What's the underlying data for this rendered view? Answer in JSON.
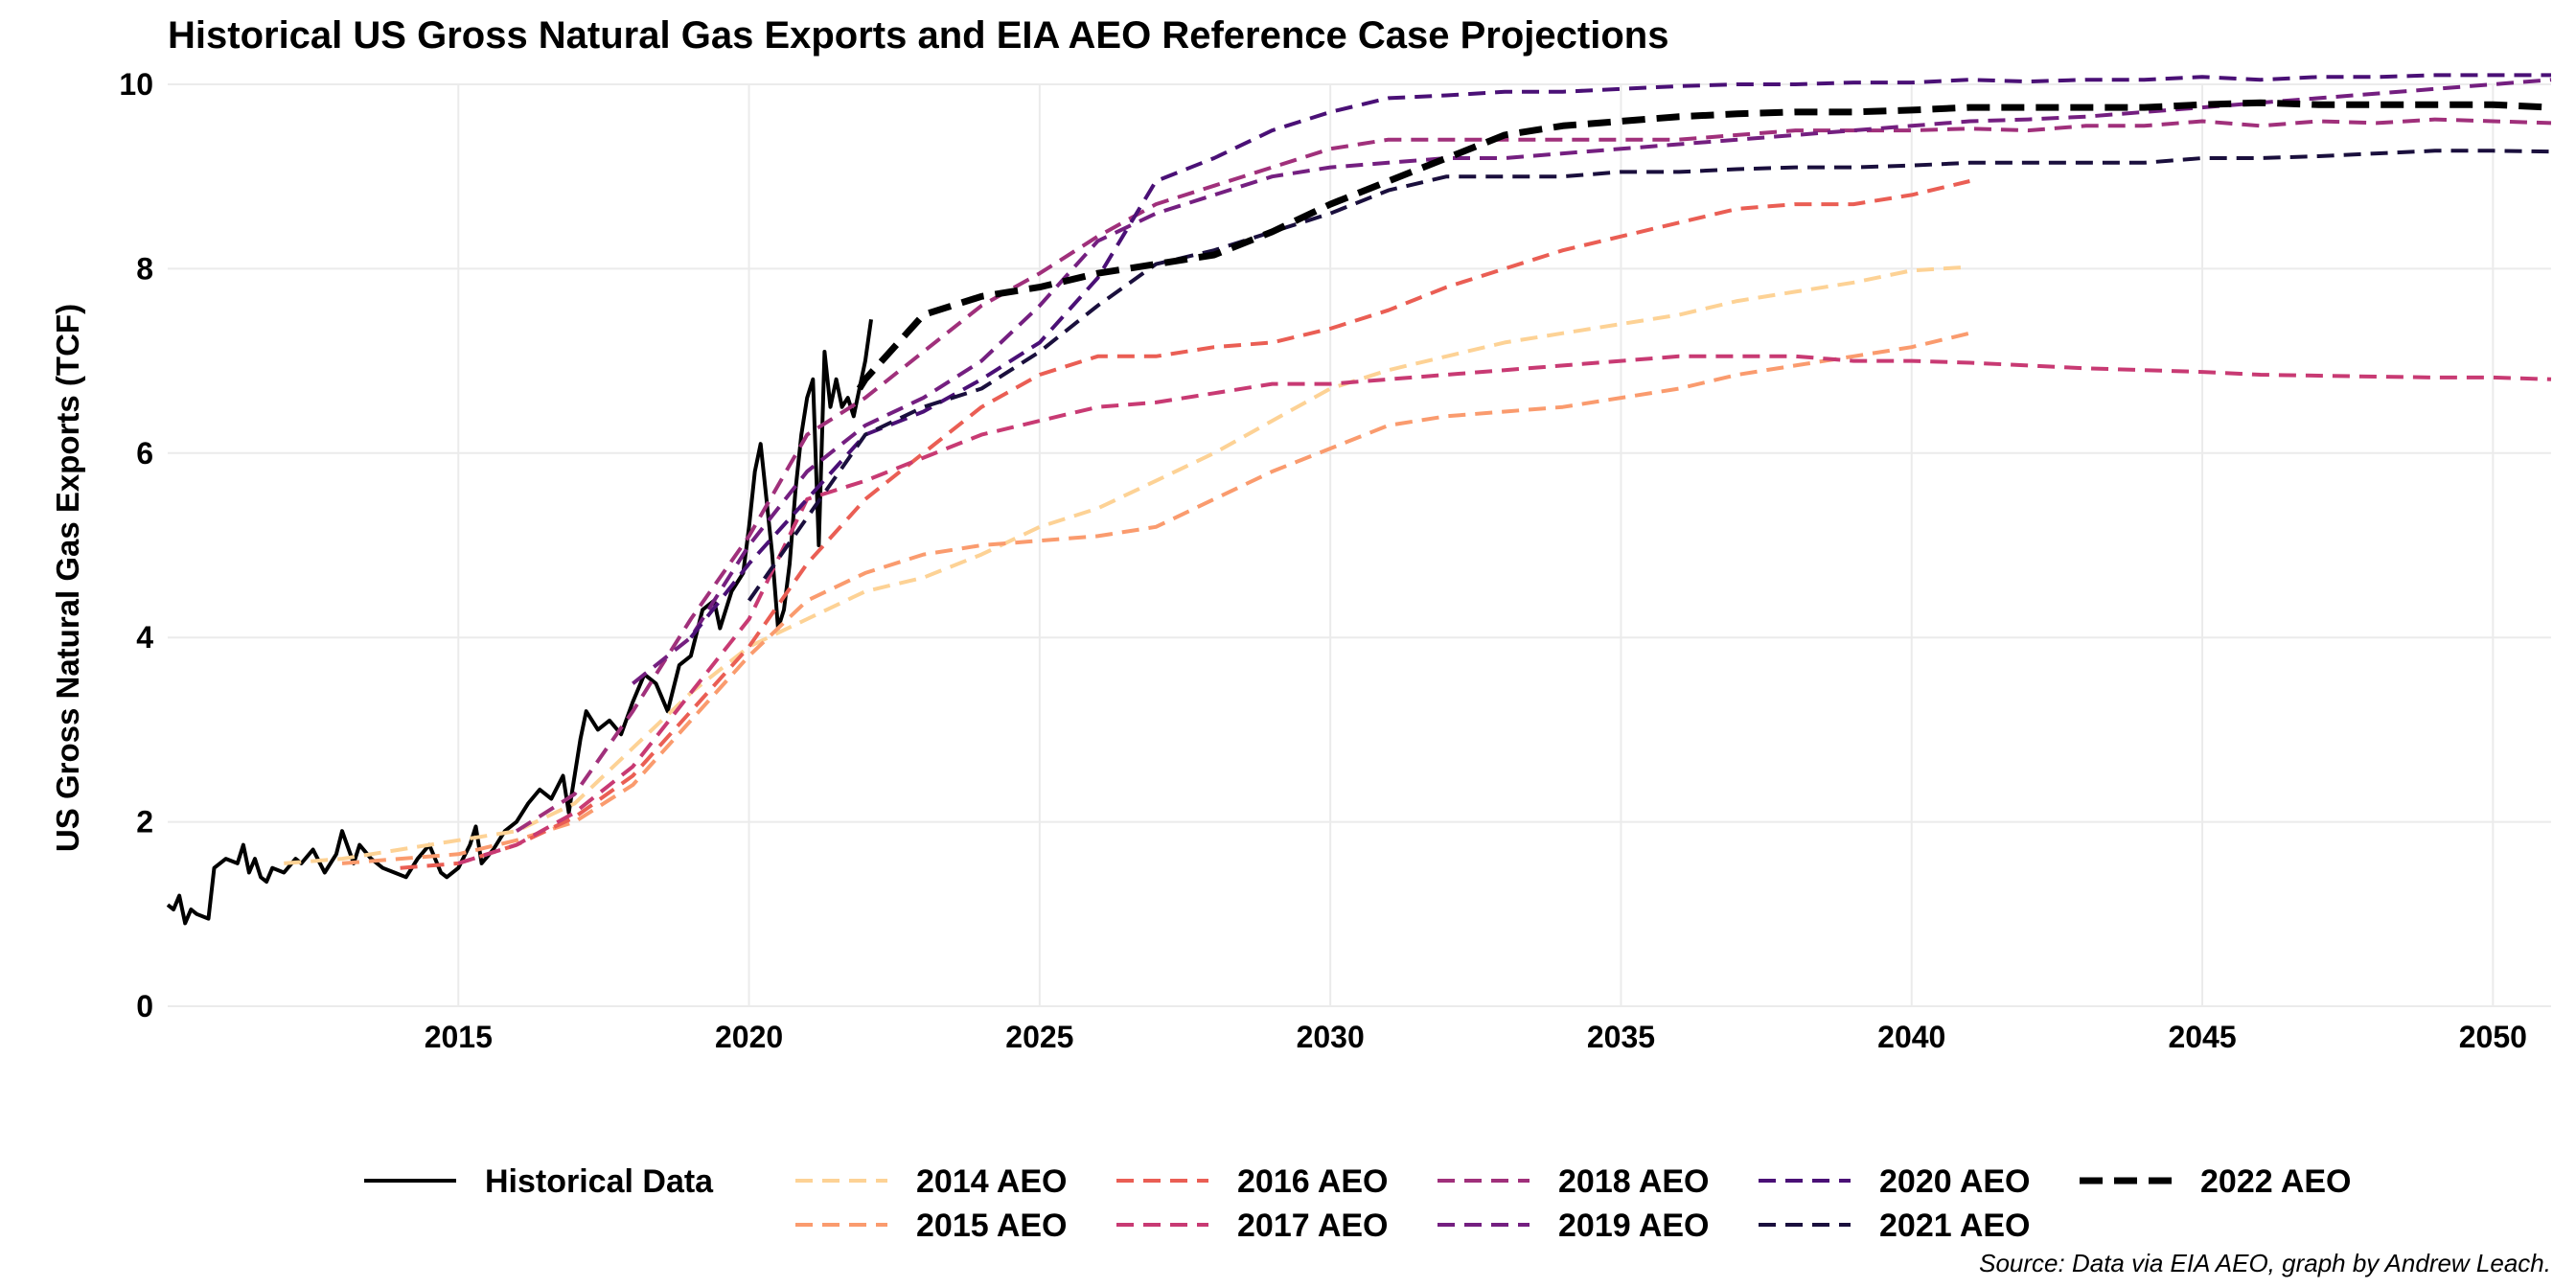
{
  "chart_data": {
    "type": "line",
    "title": "Historical US Gross Natural Gas Exports and EIA AEO Reference Case Projections",
    "ylabel": "US Gross Natural Gas Exports (TCF)",
    "xlabel": "",
    "caption": "Source: Data via EIA AEO, graph by Andrew Leach.",
    "xlim": [
      2010,
      2051
    ],
    "ylim": [
      0,
      10
    ],
    "x_ticks": [
      2015,
      2020,
      2025,
      2030,
      2035,
      2040,
      2045,
      2050
    ],
    "y_ticks": [
      0,
      2,
      4,
      6,
      8,
      10
    ],
    "grid": true,
    "legend_position": "bottom",
    "series": [
      {
        "name": "Historical Data",
        "color": "#000000",
        "dash": "solid",
        "width": 4,
        "x": [
          2010.0,
          2010.1,
          2010.2,
          2010.3,
          2010.4,
          2010.5,
          2010.7,
          2010.8,
          2011.0,
          2011.2,
          2011.3,
          2011.4,
          2011.5,
          2011.6,
          2011.7,
          2011.8,
          2012.0,
          2012.2,
          2012.3,
          2012.5,
          2012.7,
          2012.9,
          2013.0,
          2013.2,
          2013.3,
          2013.5,
          2013.7,
          2013.9,
          2014.1,
          2014.3,
          2014.5,
          2014.7,
          2014.8,
          2015.0,
          2015.2,
          2015.3,
          2015.4,
          2015.6,
          2015.8,
          2016.0,
          2016.2,
          2016.4,
          2016.6,
          2016.8,
          2016.9,
          2017.1,
          2017.2,
          2017.4,
          2017.6,
          2017.8,
          2018.0,
          2018.2,
          2018.4,
          2018.6,
          2018.8,
          2019.0,
          2019.2,
          2019.4,
          2019.5,
          2019.7,
          2019.9,
          2020.0,
          2020.1,
          2020.2,
          2020.3,
          2020.4,
          2020.5,
          2020.6,
          2020.7,
          2020.8,
          2020.9,
          2021.0,
          2021.1,
          2021.2,
          2021.3,
          2021.4,
          2021.5,
          2021.6,
          2021.7,
          2021.8,
          2021.9,
          2022.0,
          2022.1
        ],
        "y": [
          1.1,
          1.05,
          1.2,
          0.9,
          1.05,
          1.0,
          0.95,
          1.5,
          1.6,
          1.55,
          1.75,
          1.45,
          1.6,
          1.4,
          1.35,
          1.5,
          1.45,
          1.6,
          1.55,
          1.7,
          1.45,
          1.65,
          1.9,
          1.55,
          1.75,
          1.6,
          1.5,
          1.45,
          1.4,
          1.6,
          1.75,
          1.45,
          1.4,
          1.5,
          1.75,
          1.95,
          1.55,
          1.7,
          1.9,
          2.0,
          2.2,
          2.35,
          2.25,
          2.5,
          2.1,
          2.9,
          3.2,
          3.0,
          3.1,
          2.95,
          3.3,
          3.6,
          3.5,
          3.2,
          3.7,
          3.8,
          4.3,
          4.4,
          4.1,
          4.5,
          4.7,
          5.2,
          5.8,
          6.1,
          5.5,
          4.9,
          4.1,
          4.3,
          4.8,
          5.6,
          6.2,
          6.6,
          6.8,
          5.0,
          7.1,
          6.5,
          6.8,
          6.5,
          6.6,
          6.4,
          6.7,
          7.0,
          7.45
        ]
      },
      {
        "name": "2014 AEO",
        "color": "#fdd295",
        "dash": "dashed",
        "width": 4,
        "x": [
          2012,
          2013,
          2014,
          2015,
          2016,
          2017,
          2018,
          2019,
          2020,
          2021,
          2022,
          2023,
          2024,
          2025,
          2026,
          2027,
          2028,
          2029,
          2030,
          2031,
          2032,
          2033,
          2034,
          2035,
          2036,
          2037,
          2038,
          2039,
          2040,
          2041
        ],
        "y": [
          1.55,
          1.6,
          1.7,
          1.8,
          1.9,
          2.2,
          2.8,
          3.4,
          3.9,
          4.2,
          4.5,
          4.65,
          4.9,
          5.2,
          5.4,
          5.7,
          6.0,
          6.35,
          6.7,
          6.9,
          7.05,
          7.2,
          7.3,
          7.4,
          7.5,
          7.65,
          7.75,
          7.85,
          7.98,
          8.02
        ]
      },
      {
        "name": "2015 AEO",
        "color": "#fa9b6e",
        "dash": "dashed",
        "width": 4,
        "x": [
          2013,
          2014,
          2015,
          2016,
          2017,
          2018,
          2019,
          2020,
          2021,
          2022,
          2023,
          2024,
          2025,
          2026,
          2027,
          2028,
          2029,
          2030,
          2031,
          2032,
          2033,
          2034,
          2035,
          2036,
          2037,
          2038,
          2039,
          2040,
          2041
        ],
        "y": [
          1.55,
          1.6,
          1.65,
          1.8,
          2.0,
          2.4,
          3.1,
          3.8,
          4.4,
          4.7,
          4.9,
          5.0,
          5.05,
          5.1,
          5.2,
          5.5,
          5.8,
          6.05,
          6.3,
          6.4,
          6.45,
          6.5,
          6.6,
          6.7,
          6.85,
          6.95,
          7.05,
          7.15,
          7.3
        ]
      },
      {
        "name": "2016 AEO",
        "color": "#ea5e54",
        "dash": "dashed",
        "width": 4,
        "x": [
          2014,
          2015,
          2016,
          2017,
          2018,
          2019,
          2020,
          2021,
          2022,
          2023,
          2024,
          2025,
          2026,
          2027,
          2028,
          2029,
          2030,
          2031,
          2032,
          2033,
          2034,
          2035,
          2036,
          2037,
          2038,
          2039,
          2040,
          2041
        ],
        "y": [
          1.5,
          1.55,
          1.75,
          2.05,
          2.5,
          3.2,
          3.9,
          4.8,
          5.5,
          6.0,
          6.5,
          6.85,
          7.05,
          7.05,
          7.15,
          7.2,
          7.35,
          7.55,
          7.8,
          8.0,
          8.2,
          8.35,
          8.5,
          8.65,
          8.7,
          8.7,
          8.8,
          8.95
        ]
      },
      {
        "name": "2017 AEO",
        "color": "#c83a73",
        "dash": "dashed",
        "width": 4,
        "x": [
          2015,
          2016,
          2017,
          2018,
          2019,
          2020,
          2021,
          2022,
          2023,
          2024,
          2025,
          2026,
          2027,
          2028,
          2029,
          2030,
          2031,
          2032,
          2033,
          2034,
          2035,
          2036,
          2037,
          2038,
          2039,
          2040,
          2041,
          2042,
          2043,
          2044,
          2045,
          2046,
          2047,
          2048,
          2049,
          2050,
          2051
        ],
        "y": [
          1.55,
          1.75,
          2.1,
          2.6,
          3.4,
          4.2,
          5.5,
          5.7,
          5.95,
          6.2,
          6.35,
          6.5,
          6.55,
          6.65,
          6.75,
          6.75,
          6.8,
          6.85,
          6.9,
          6.95,
          7.0,
          7.05,
          7.05,
          7.05,
          7.0,
          7.0,
          6.98,
          6.95,
          6.92,
          6.9,
          6.88,
          6.85,
          6.84,
          6.83,
          6.82,
          6.82,
          6.8
        ]
      },
      {
        "name": "2018 AEO",
        "color": "#a0307b",
        "dash": "dashed",
        "width": 4,
        "x": [
          2016,
          2017,
          2018,
          2019,
          2020,
          2021,
          2022,
          2023,
          2024,
          2025,
          2026,
          2027,
          2028,
          2029,
          2030,
          2031,
          2032,
          2033,
          2034,
          2035,
          2036,
          2037,
          2038,
          2039,
          2040,
          2041,
          2042,
          2043,
          2044,
          2045,
          2046,
          2047,
          2048,
          2049,
          2050,
          2051
        ],
        "y": [
          1.9,
          2.3,
          3.2,
          4.2,
          5.1,
          6.2,
          6.6,
          7.1,
          7.6,
          7.95,
          8.35,
          8.7,
          8.9,
          9.1,
          9.3,
          9.4,
          9.4,
          9.4,
          9.4,
          9.4,
          9.4,
          9.45,
          9.5,
          9.5,
          9.5,
          9.52,
          9.5,
          9.55,
          9.55,
          9.6,
          9.55,
          9.6,
          9.58,
          9.62,
          9.6,
          9.58
        ]
      },
      {
        "name": "2019 AEO",
        "color": "#741f80",
        "dash": "dashed",
        "width": 4,
        "x": [
          2018,
          2019,
          2020,
          2021,
          2022,
          2023,
          2024,
          2025,
          2026,
          2027,
          2028,
          2029,
          2030,
          2031,
          2032,
          2033,
          2034,
          2035,
          2036,
          2037,
          2038,
          2039,
          2040,
          2041,
          2042,
          2043,
          2044,
          2045,
          2046,
          2047,
          2048,
          2049,
          2050,
          2051
        ],
        "y": [
          3.5,
          4.0,
          5.0,
          5.8,
          6.3,
          6.6,
          7.0,
          7.6,
          8.3,
          8.6,
          8.8,
          9.0,
          9.1,
          9.15,
          9.2,
          9.2,
          9.25,
          9.3,
          9.35,
          9.4,
          9.45,
          9.5,
          9.55,
          9.6,
          9.62,
          9.65,
          9.7,
          9.75,
          9.8,
          9.85,
          9.9,
          9.95,
          10.0,
          10.05
        ]
      },
      {
        "name": "2020 AEO",
        "color": "#4a1076",
        "dash": "dashed",
        "width": 4,
        "x": [
          2019,
          2020,
          2021,
          2022,
          2023,
          2024,
          2025,
          2026,
          2027,
          2028,
          2029,
          2030,
          2031,
          2032,
          2033,
          2034,
          2035,
          2036,
          2037,
          2038,
          2039,
          2040,
          2041,
          2042,
          2043,
          2044,
          2045,
          2046,
          2047,
          2048,
          2049,
          2050,
          2051
        ],
        "y": [
          4.0,
          4.8,
          5.5,
          6.2,
          6.45,
          6.8,
          7.2,
          7.9,
          8.95,
          9.2,
          9.5,
          9.7,
          9.85,
          9.88,
          9.92,
          9.92,
          9.95,
          9.98,
          10.0,
          10.0,
          10.02,
          10.02,
          10.05,
          10.03,
          10.05,
          10.05,
          10.08,
          10.05,
          10.08,
          10.08,
          10.1,
          10.1,
          10.1
        ]
      },
      {
        "name": "2021 AEO",
        "color": "#1a0f3d",
        "dash": "dashed",
        "width": 4,
        "x": [
          2020,
          2021,
          2022,
          2023,
          2024,
          2025,
          2026,
          2027,
          2028,
          2029,
          2030,
          2031,
          2032,
          2033,
          2034,
          2035,
          2036,
          2037,
          2038,
          2039,
          2040,
          2041,
          2042,
          2043,
          2044,
          2045,
          2046,
          2047,
          2048,
          2049,
          2050,
          2051
        ],
        "y": [
          4.4,
          5.3,
          6.2,
          6.5,
          6.7,
          7.1,
          7.6,
          8.05,
          8.2,
          8.4,
          8.6,
          8.85,
          9.0,
          9.0,
          9.0,
          9.05,
          9.05,
          9.08,
          9.1,
          9.1,
          9.12,
          9.15,
          9.15,
          9.15,
          9.15,
          9.2,
          9.2,
          9.22,
          9.25,
          9.28,
          9.28,
          9.27
        ]
      },
      {
        "name": "2022 AEO",
        "color": "#000000",
        "dash": "dashed",
        "width": 7,
        "x": [
          2021.9,
          2022,
          2023,
          2024,
          2025,
          2026,
          2027,
          2028,
          2029,
          2030,
          2031,
          2032,
          2033,
          2034,
          2035,
          2036,
          2037,
          2038,
          2039,
          2040,
          2041,
          2042,
          2043,
          2044,
          2045,
          2046,
          2047,
          2048,
          2049,
          2050,
          2051
        ],
        "y": [
          6.7,
          6.8,
          7.5,
          7.7,
          7.8,
          7.95,
          8.05,
          8.15,
          8.4,
          8.7,
          8.95,
          9.2,
          9.45,
          9.55,
          9.6,
          9.65,
          9.68,
          9.7,
          9.7,
          9.72,
          9.75,
          9.75,
          9.75,
          9.75,
          9.78,
          9.8,
          9.78,
          9.78,
          9.78,
          9.78,
          9.75
        ]
      }
    ]
  }
}
